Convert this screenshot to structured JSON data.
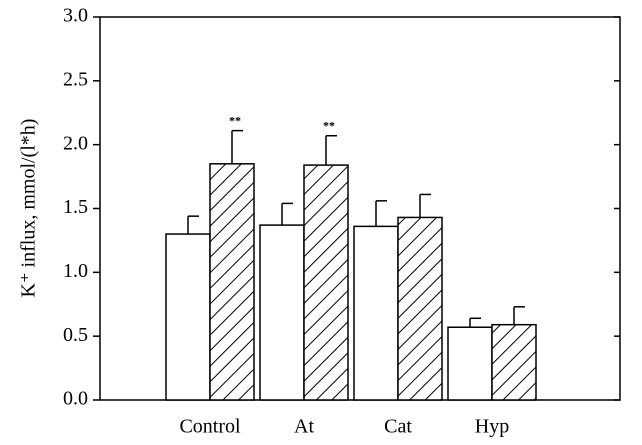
{
  "chart_data": {
    "type": "bar",
    "ylabel": "K⁺ influx, mmol/(l*h)",
    "categories": [
      "Control",
      "At",
      "Cat",
      "Hyp"
    ],
    "series": [
      {
        "color": "#ffffff",
        "hatch": false,
        "values": [
          1.3,
          1.37,
          1.36,
          0.57
        ],
        "errors": [
          0.14,
          0.17,
          0.2,
          0.07
        ]
      },
      {
        "color": "#ffffff",
        "hatch": true,
        "values": [
          1.85,
          1.84,
          1.43,
          0.59
        ],
        "errors": [
          0.26,
          0.23,
          0.18,
          0.14
        ]
      }
    ],
    "annotations": [
      {
        "text": "**",
        "x": "Control",
        "series": 1
      },
      {
        "text": "**",
        "x": "At",
        "series": 1
      }
    ],
    "ylim": [
      0,
      3.0
    ],
    "yticks": [
      {
        "value": 0,
        "label": "0.0"
      },
      0.5,
      {
        "value": 1,
        "label": "1.0"
      },
      1.5,
      {
        "value": 2,
        "label": "2.0"
      },
      2.5,
      {
        "value": 3,
        "label": "3.0"
      }
    ]
  }
}
